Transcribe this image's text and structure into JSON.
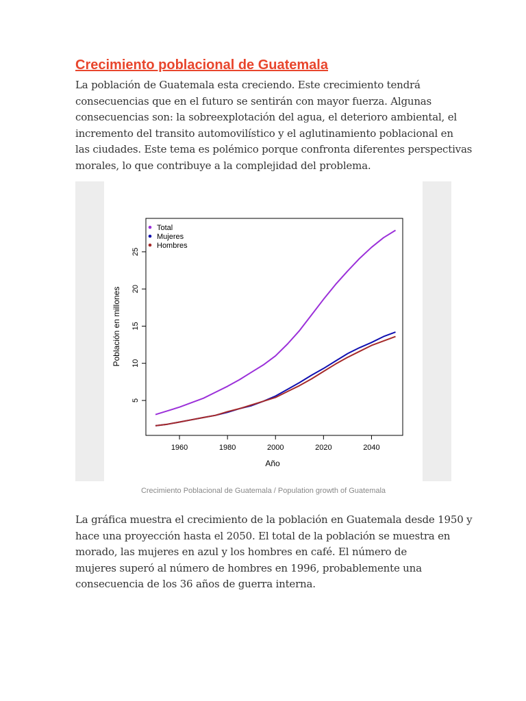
{
  "article": {
    "title": "Crecimiento poblacional de Guatemala ",
    "intro_lines": [
      "La población de Guatemala esta creciendo. Este crecimiento tendrá",
      "consecuencias que en el futuro se sentirán con mayor fuerza. Algunas",
      "consecuencias son: la sobreexplotación del agua, el deterioro ambiental, el",
      "incremento del transito automovilístico y el aglutinamiento poblacional en",
      "las ciudades. Este tema es polémico porque confronta diferentes perspectivas",
      "morales, lo que contribuye a la complejidad del problema."
    ],
    "caption": "Crecimiento Poblacional de Guatemala / Population growth of Guatemala",
    "body_lines": [
      "La gráfica muestra el crecimiento de la población en Guatemala desde 1950 y",
      "hace una proyección hasta el 2050. El total de la población se muestra en",
      "morado, las mujeres en azul y los hombres en café. El número de",
      "mujeres superó al número de hombres en 1996, probablemente una",
      "consecuencia de los 36 años de guerra interna."
    ]
  },
  "colors": {
    "title": "#e8452c",
    "total": "#9b30d9",
    "mujeres": "#1010b0",
    "hombres": "#a52a2a"
  },
  "chart_data": {
    "type": "line",
    "title": "",
    "xlabel": "Año",
    "ylabel": "Población en millones",
    "xlim": [
      1946,
      2053
    ],
    "ylim": [
      0.3,
      29.5
    ],
    "x_ticks": [
      1960,
      1980,
      2000,
      2020,
      2040
    ],
    "y_ticks": [
      5,
      10,
      15,
      20,
      25
    ],
    "grid": false,
    "legend_position": "top-left",
    "x": [
      1950,
      1955,
      1960,
      1965,
      1970,
      1975,
      1980,
      1985,
      1990,
      1995,
      2000,
      2005,
      2010,
      2015,
      2020,
      2025,
      2030,
      2035,
      2040,
      2045,
      2050
    ],
    "series": [
      {
        "name": "Total",
        "color_key": "total",
        "values": [
          3.1,
          3.6,
          4.1,
          4.7,
          5.3,
          6.1,
          6.9,
          7.8,
          8.8,
          9.8,
          11.0,
          12.6,
          14.4,
          16.5,
          18.6,
          20.6,
          22.4,
          24.1,
          25.6,
          26.9,
          27.9
        ]
      },
      {
        "name": "Mujeres",
        "color_key": "mujeres",
        "values": [
          1.6,
          1.8,
          2.1,
          2.4,
          2.7,
          3.0,
          3.4,
          3.9,
          4.3,
          4.9,
          5.6,
          6.5,
          7.4,
          8.4,
          9.3,
          10.3,
          11.3,
          12.1,
          12.8,
          13.6,
          14.2
        ]
      },
      {
        "name": "Hombres",
        "color_key": "hombres",
        "values": [
          1.6,
          1.8,
          2.1,
          2.4,
          2.7,
          3.0,
          3.5,
          3.9,
          4.4,
          4.9,
          5.4,
          6.2,
          7.0,
          7.9,
          8.9,
          9.9,
          10.8,
          11.6,
          12.4,
          13.0,
          13.6
        ]
      }
    ]
  }
}
